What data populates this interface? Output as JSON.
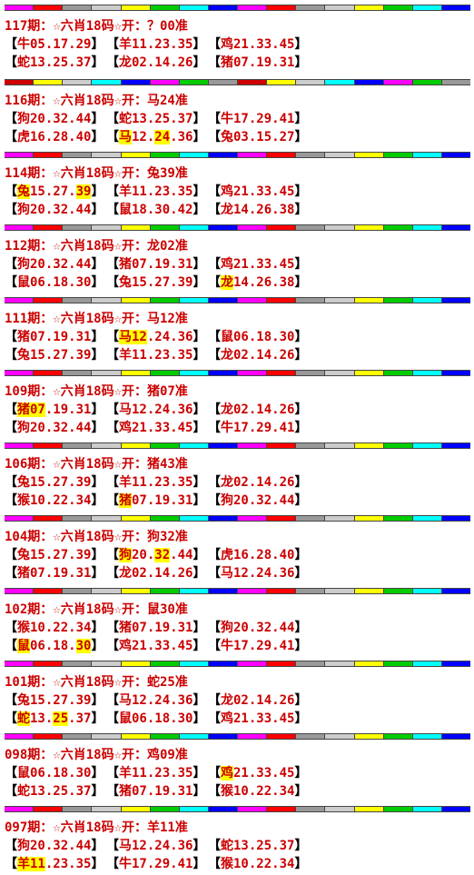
{
  "colors": {
    "text": "#cc0000",
    "bracket": "#000000",
    "highlight": "#ffff00",
    "bar_cycle_a": [
      "#ff00ff",
      "#ff0000",
      "#999999",
      "#cccccc",
      "#ffff00",
      "#00cc00",
      "#00ffff",
      "#0000ff"
    ],
    "bar_cycle_b": [
      "#cc0000",
      "#ffff00",
      "#cccccc",
      "#00ffff",
      "#0000ff",
      "#ff00ff",
      "#00cc00",
      "#999999"
    ]
  },
  "bar_segments": 16,
  "bar_variant": [
    "a",
    "b",
    "a",
    "a",
    "a",
    "a",
    "a",
    "a",
    "a",
    "a",
    "a",
    "a"
  ],
  "blocks": [
    {
      "title": "117期：☆六肖18码☆开：？00准",
      "rows": [
        [
          {
            "z": "牛",
            "n": "05.17.29"
          },
          {
            "z": "羊",
            "n": "11.23.35"
          },
          {
            "z": "鸡",
            "n": "21.33.45"
          }
        ],
        [
          {
            "z": "蛇",
            "n": "13.25.37"
          },
          {
            "z": "龙",
            "n": "02.14.26"
          },
          {
            "z": "猪",
            "n": "07.19.31"
          }
        ]
      ]
    },
    {
      "title": "116期：☆六肖18码☆开：马24准",
      "rows": [
        [
          {
            "z": "狗",
            "n": "20.32.44"
          },
          {
            "z": "蛇",
            "n": "13.25.37"
          },
          {
            "z": "牛",
            "n": "17.29.41"
          }
        ],
        [
          {
            "z": "虎",
            "n": "16.28.40"
          },
          {
            "z": "马",
            "n": "12.",
            "h": "24",
            "t": ".36",
            "hz": true
          },
          {
            "z": "兔",
            "n": "03.15.27"
          }
        ]
      ]
    },
    {
      "title": "114期：☆六肖18码☆开：兔39准",
      "rows": [
        [
          {
            "z": "兔",
            "n": "15.27.",
            "h": "39",
            "t": "",
            "hz": true
          },
          {
            "z": "羊",
            "n": "11.23.35"
          },
          {
            "z": "鸡",
            "n": "21.33.45"
          }
        ],
        [
          {
            "z": "狗",
            "n": "20.32.44"
          },
          {
            "z": "鼠",
            "n": "18.30.42"
          },
          {
            "z": "龙",
            "n": "14.26.38"
          }
        ]
      ]
    },
    {
      "title": "112期：☆六肖18码☆开：龙02准",
      "rows": [
        [
          {
            "z": "狗",
            "n": "20.32.44"
          },
          {
            "z": "猪",
            "n": "07.19.31"
          },
          {
            "z": "鸡",
            "n": "21.33.45"
          }
        ],
        [
          {
            "z": "鼠",
            "n": "06.18.30"
          },
          {
            "z": "兔",
            "n": "15.27.39"
          },
          {
            "z": "龙",
            "n": "14.26.38",
            "hz": true
          }
        ]
      ]
    },
    {
      "title": "111期：☆六肖18码☆开：马12准",
      "rows": [
        [
          {
            "z": "猪",
            "n": "07.19.31"
          },
          {
            "z": "马",
            "n": "",
            "h": "12",
            "t": ".24.36",
            "hz": true
          },
          {
            "z": "鼠",
            "n": "06.18.30"
          }
        ],
        [
          {
            "z": "兔",
            "n": "15.27.39"
          },
          {
            "z": "羊",
            "n": "11.23.35"
          },
          {
            "z": "龙",
            "n": "02.14.26"
          }
        ]
      ]
    },
    {
      "title": "109期：☆六肖18码☆开：猪07准",
      "rows": [
        [
          {
            "z": "猪",
            "n": "",
            "h": "07",
            "t": ".19.31",
            "hz": true
          },
          {
            "z": "马",
            "n": "12.24.36"
          },
          {
            "z": "龙",
            "n": "02.14.26"
          }
        ],
        [
          {
            "z": "狗",
            "n": "20.32.44"
          },
          {
            "z": "鸡",
            "n": "21.33.45"
          },
          {
            "z": "牛",
            "n": "17.29.41"
          }
        ]
      ]
    },
    {
      "title": "106期：☆六肖18码☆开：猪43准",
      "rows": [
        [
          {
            "z": "兔",
            "n": "15.27.39"
          },
          {
            "z": "羊",
            "n": "11.23.35"
          },
          {
            "z": "龙",
            "n": "02.14.26"
          }
        ],
        [
          {
            "z": "猴",
            "n": "10.22.34"
          },
          {
            "z": "猪",
            "n": "07.19.31",
            "hz": true
          },
          {
            "z": "狗",
            "n": "20.32.44"
          }
        ]
      ]
    },
    {
      "title": "104期：☆六肖18码☆开：狗32准",
      "rows": [
        [
          {
            "z": "兔",
            "n": "15.27.39"
          },
          {
            "z": "狗",
            "n": "20.",
            "h": "32",
            "t": ".44",
            "hz": true
          },
          {
            "z": "虎",
            "n": "16.28.40"
          }
        ],
        [
          {
            "z": "猪",
            "n": "07.19.31"
          },
          {
            "z": "龙",
            "n": "02.14.26"
          },
          {
            "z": "马",
            "n": "12.24.36"
          }
        ]
      ]
    },
    {
      "title": "102期：☆六肖18码☆开：鼠30准",
      "rows": [
        [
          {
            "z": "猴",
            "n": "10.22.34"
          },
          {
            "z": "猪",
            "n": "07.19.31"
          },
          {
            "z": "狗",
            "n": "20.32.44"
          }
        ],
        [
          {
            "z": "鼠",
            "n": "06.18.",
            "h": "30",
            "t": "",
            "hz": true
          },
          {
            "z": "鸡",
            "n": "21.33.45"
          },
          {
            "z": "牛",
            "n": "17.29.41"
          }
        ]
      ]
    },
    {
      "title": "101期：☆六肖18码☆开：蛇25准",
      "rows": [
        [
          {
            "z": "兔",
            "n": "15.27.39"
          },
          {
            "z": "马",
            "n": "12.24.36"
          },
          {
            "z": "龙",
            "n": "02.14.26"
          }
        ],
        [
          {
            "z": "蛇",
            "n": "13.",
            "h": "25",
            "t": ".37",
            "hz": true
          },
          {
            "z": "鼠",
            "n": "06.18.30"
          },
          {
            "z": "鸡",
            "n": "21.33.45"
          }
        ]
      ]
    },
    {
      "title": "098期：☆六肖18码☆开：鸡09准",
      "rows": [
        [
          {
            "z": "鼠",
            "n": "06.18.30"
          },
          {
            "z": "羊",
            "n": "11.23.35"
          },
          {
            "z": "鸡",
            "n": "21.33.45",
            "hz": true
          }
        ],
        [
          {
            "z": "蛇",
            "n": "13.25.37"
          },
          {
            "z": "猪",
            "n": "07.19.31"
          },
          {
            "z": "猴",
            "n": "10.22.34"
          }
        ]
      ]
    },
    {
      "title": "097期：☆六肖18码☆开：羊11准",
      "rows": [
        [
          {
            "z": "狗",
            "n": "20.32.44"
          },
          {
            "z": "马",
            "n": "12.24.36"
          },
          {
            "z": "蛇",
            "n": "13.25.37"
          }
        ],
        [
          {
            "z": "羊",
            "n": "",
            "h": "11",
            "t": ".23.35",
            "hz": true
          },
          {
            "z": "牛",
            "n": "17.29.41"
          },
          {
            "z": "猴",
            "n": "10.22.34"
          }
        ]
      ]
    }
  ]
}
